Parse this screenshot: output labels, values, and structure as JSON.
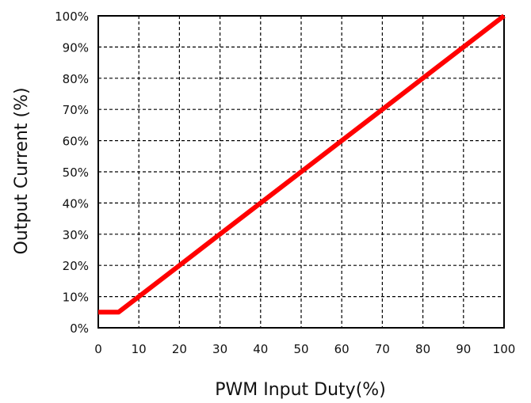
{
  "chart_data": {
    "type": "line",
    "xlabel": "PWM Input Duty(%)",
    "ylabel": "Output  Current (%)",
    "xlim": [
      0,
      100
    ],
    "ylim": [
      0,
      100
    ],
    "x_ticks": [
      "0",
      "10",
      "20",
      "30",
      "40",
      "50",
      "60",
      "70",
      "80",
      "90",
      "100"
    ],
    "y_ticks": [
      "0%",
      "10%",
      "20%",
      "30%",
      "40%",
      "50%",
      "60%",
      "70%",
      "80%",
      "90%",
      "100%"
    ],
    "grid": "dashed",
    "series": [
      {
        "color": "#ff0000",
        "x": [
          0,
          5,
          10,
          20,
          30,
          40,
          50,
          60,
          70,
          80,
          90,
          100
        ],
        "y": [
          5,
          5,
          10,
          20,
          30,
          40,
          50,
          60,
          70,
          80,
          90,
          100
        ]
      }
    ]
  }
}
